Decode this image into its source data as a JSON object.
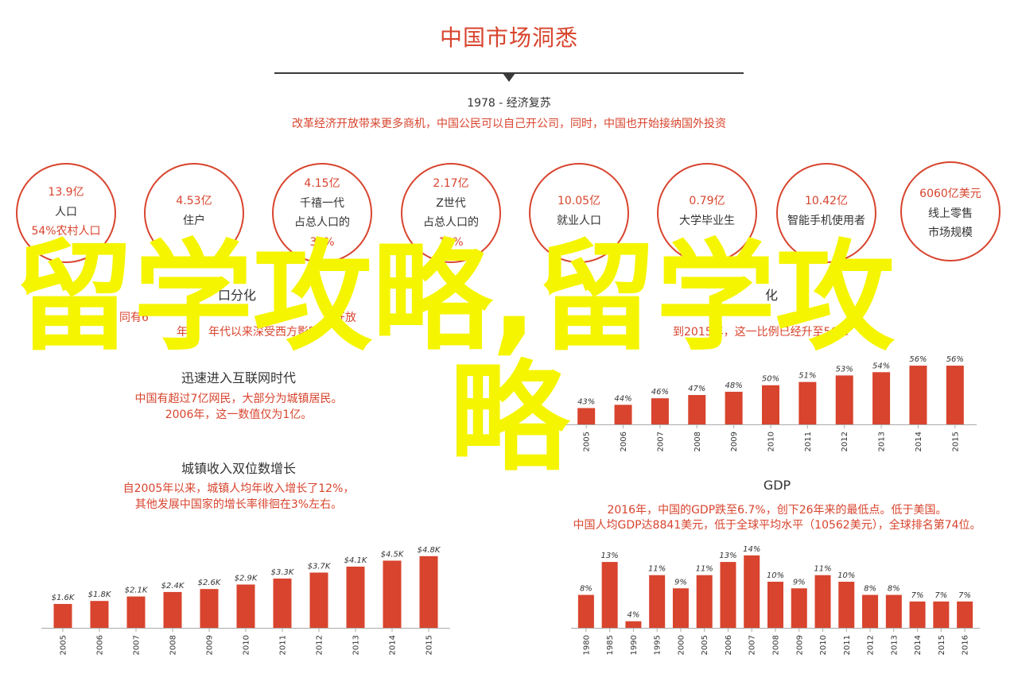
{
  "title": "中国市场洞悉",
  "period": "1978 - 经济复苏",
  "period_desc": "改革经济开放带来更多商机，中国公民可以自己开公司，同时，中国也开始接纳国外投资",
  "colors": {
    "accent": "#d8442e",
    "text": "#333333",
    "overlay": "#f5f500",
    "axis": "#aaaaaa"
  },
  "circles": [
    {
      "lines": [
        "13.9亿",
        "人口",
        "54%农村人口"
      ]
    },
    {
      "lines": [
        "4.53亿",
        "住户"
      ]
    },
    {
      "lines": [
        "4.15亿",
        "千禧一代",
        "占总人口的",
        "30%"
      ]
    },
    {
      "lines": [
        "2.17亿",
        "Z世代",
        "占总人口的",
        "18%"
      ]
    },
    {
      "lines": [
        "10.05亿",
        "就业人口"
      ]
    },
    {
      "lines": [
        "0.79亿",
        "大学毕业生"
      ]
    },
    {
      "lines": [
        "10.42亿",
        "智能手机使用者"
      ]
    },
    {
      "lines": [
        "6060亿美元",
        "线上零售",
        "市场规模"
      ]
    }
  ],
  "sections": {
    "left_top": {
      "title": "口分化",
      "text": [
        "同有6",
        "年。",
        "开放",
        "年代以来深受西方影响"
      ]
    },
    "right_top": {
      "title": "化",
      "text": [
        "到2015年，这一比例已经升至56%"
      ]
    },
    "internet": {
      "title": "迅速进入互联网时代",
      "text": [
        "中国有超过7亿网民，大部分为城镇居民。",
        "2006年，这一数值仅为1亿。"
      ]
    },
    "income": {
      "title": "城镇收入双位数增长",
      "text": [
        "自2005年以来，城镇人均年收入增长了12%，",
        "其他发展中国家的增长率徘徊在3%左右。"
      ]
    },
    "gdp": {
      "title": "GDP",
      "text": [
        "2016年，中国的GDP跌至6.7%，创下26年来的最低点。低于美国。",
        "中国人均GDP达8841美元，低于全球平均水平（10562美元），全球排名第74位。"
      ]
    }
  },
  "overlay_text": [
    "留学攻略,留学攻",
    "略"
  ],
  "chart_data": [
    {
      "type": "bar",
      "categories": [
        "2005",
        "2006",
        "2007",
        "2008",
        "2009",
        "2010",
        "2011",
        "2012",
        "2013",
        "2014",
        "2015"
      ],
      "values": [
        43,
        44,
        46,
        47,
        48,
        50,
        51,
        53,
        54,
        56,
        56
      ],
      "labels": [
        "43%",
        "44%",
        "46%",
        "47%",
        "48%",
        "50%",
        "51%",
        "53%",
        "54%",
        "56%",
        "56%"
      ],
      "ylim": [
        38,
        57
      ]
    },
    {
      "type": "bar",
      "categories": [
        "2005",
        "2006",
        "2007",
        "2008",
        "2009",
        "2010",
        "2011",
        "2012",
        "2013",
        "2014",
        "2015"
      ],
      "values": [
        1.6,
        1.8,
        2.1,
        2.4,
        2.6,
        2.9,
        3.3,
        3.7,
        4.1,
        4.5,
        4.8
      ],
      "labels": [
        "$1.6K",
        "$1.8K",
        "$2.1K",
        "$2.4K",
        "$2.6K",
        "$2.9K",
        "$3.3K",
        "$3.7K",
        "$4.1K",
        "$4.5K",
        "$4.8K"
      ],
      "ylim": [
        0,
        4.95
      ]
    },
    {
      "type": "bar",
      "categories": [
        "1980",
        "1985",
        "1990",
        "1995",
        "2000",
        "2005",
        "2006",
        "2007",
        "2008",
        "2009",
        "2010",
        "2011",
        "2012",
        "2013",
        "2014",
        "2015",
        "2016"
      ],
      "values": [
        8,
        13,
        4,
        11,
        9,
        11,
        13,
        14,
        10,
        9,
        11,
        10,
        8,
        8,
        7,
        7,
        7
      ],
      "labels": [
        "8%",
        "13%",
        "4%",
        "11%",
        "9%",
        "11%",
        "13%",
        "14%",
        "10%",
        "9%",
        "11%",
        "10%",
        "8%",
        "8%",
        "7%",
        "7%",
        "7%"
      ],
      "ylim": [
        3,
        14.1
      ]
    }
  ]
}
